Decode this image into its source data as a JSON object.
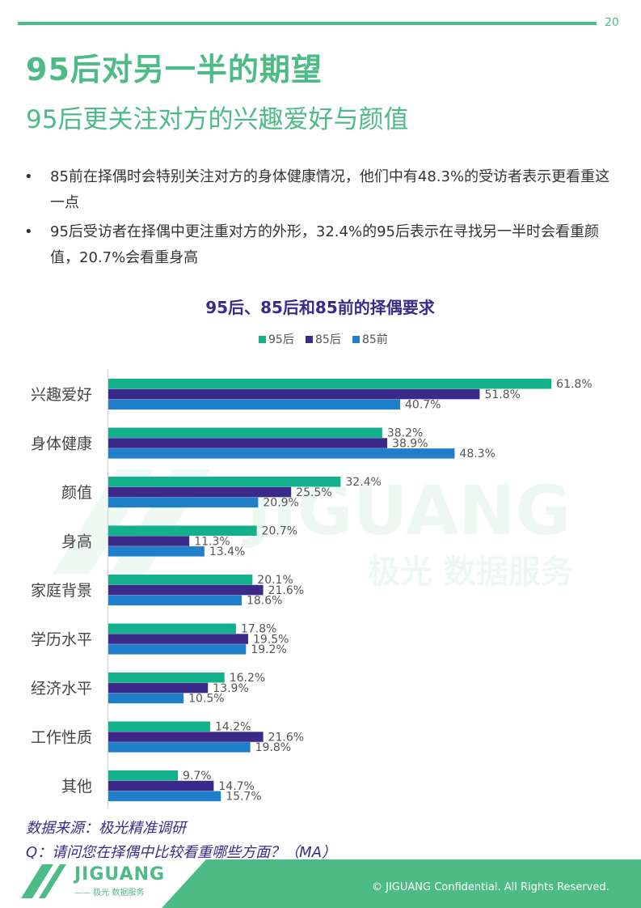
{
  "page_number": "20",
  "title": "95后对另一半的期望",
  "subtitle": "95后更关注对方的兴趣爱好与颜值",
  "bullets": [
    {
      "text": "85前在择偶时会特别关注对方的身体健康情况，他们中有48.3%的受访者表示更看重这一点"
    },
    {
      "text": "95后受访者在择偶中更注重对方的外形，32.4%的95后表示在寻找另一半时会看重颜值，20.7%会看重身高"
    }
  ],
  "watermark": {
    "brand": "JIGUANG",
    "sub": "极光 数据服务"
  },
  "chart_data": {
    "type": "bar",
    "orientation": "horizontal",
    "title": "95后、85后和85前的择偶要求",
    "categories": [
      "兴趣爱好",
      "身体健康",
      "颜值",
      "身高",
      "家庭背景",
      "学历水平",
      "经济水平",
      "工作性质",
      "其他"
    ],
    "series": [
      {
        "name": "95后",
        "color": "#13b08c",
        "values": [
          61.8,
          38.2,
          32.4,
          20.7,
          20.1,
          17.8,
          16.2,
          14.2,
          9.7
        ],
        "labels": [
          "61.8%",
          "38.2%",
          "32.4%",
          "20.7%",
          "20.1%",
          "17.8%",
          "16.2%",
          "14.2%",
          "9.7%"
        ]
      },
      {
        "name": "85后",
        "color": "#3b2a8a",
        "values": [
          51.8,
          38.9,
          25.5,
          11.3,
          21.6,
          19.5,
          13.9,
          21.6,
          14.7
        ],
        "labels": [
          "51.8%",
          "38.9%",
          "25.5%",
          "11.3%",
          "21.6%",
          "19.5%",
          "13.9%",
          "21.6%",
          "14.7%"
        ]
      },
      {
        "name": "85前",
        "color": "#1f7fc9",
        "values": [
          40.7,
          48.3,
          20.9,
          13.4,
          18.6,
          19.2,
          10.5,
          19.8,
          15.7
        ],
        "labels": [
          "40.7%",
          "48.3%",
          "20.9%",
          "13.4%",
          "18.6%",
          "19.2%",
          "10.5%",
          "19.8%",
          "15.7%"
        ]
      }
    ],
    "xlim": [
      0,
      70
    ],
    "legend": "top-center",
    "grid": false
  },
  "source_note": "数据来源：极光精准调研",
  "question_note": "Q：请问您在择偶中比较看重哪些方面？（MA）",
  "footer": {
    "logo_text": "JIGUANG",
    "logo_sub": "—— 极光 数据服务",
    "copyright": "© JIGUANG  Confidential. All Rights Reserved."
  },
  "colors": {
    "accent": "#4dbb85",
    "navy": "#3b2a8a"
  }
}
